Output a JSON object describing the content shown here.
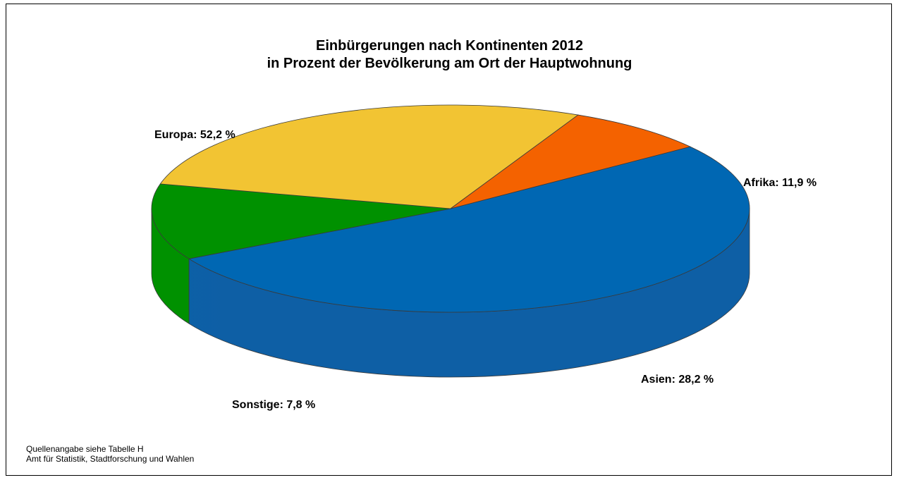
{
  "chart_data": {
    "type": "pie",
    "title_line1": "Einbürgerungen nach Kontinenten 2012",
    "title_line2": "in Prozent der Bevölkerung am Ort der Hauptwohnung",
    "slices": [
      {
        "category": "Europa",
        "value": 52.2,
        "label": "Europa: 52,2 %",
        "color": "#0067B3"
      },
      {
        "category": "Afrika",
        "value": 11.9,
        "label": "Afrika: 11,9 %",
        "color": "#009100"
      },
      {
        "category": "Asien",
        "value": 28.2,
        "label": "Asien: 28,2 %",
        "color": "#F2C433"
      },
      {
        "category": "Sonstige",
        "value": 7.8,
        "label": "Sonstige: 7,8 %",
        "color": "#F46200"
      }
    ]
  },
  "footer": {
    "line1": "Quellenangabe siehe Tabelle H",
    "line2": "Amt für Statistik, Stadtforschung und Wahlen"
  }
}
